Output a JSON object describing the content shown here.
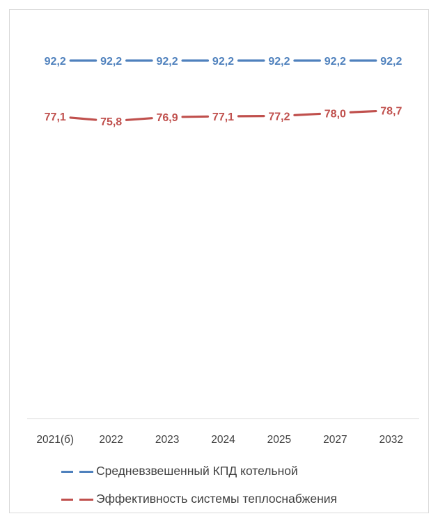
{
  "chart_data": {
    "type": "line",
    "title": "",
    "xlabel": "",
    "ylabel": "",
    "categories": [
      "2021(б)",
      "2022",
      "2023",
      "2024",
      "2025",
      "2027",
      "2032"
    ],
    "series": [
      {
        "name": "Средневзвешенный КПД котельной",
        "color": "#4f81bd",
        "values": [
          92.2,
          92.2,
          92.2,
          92.2,
          92.2,
          92.2,
          92.2
        ],
        "labels": [
          "92,2",
          "92,2",
          "92,2",
          "92,2",
          "92,2",
          "92,2",
          "92,2"
        ]
      },
      {
        "name": "Эффективность системы теплоснабжения",
        "color": "#c0504d",
        "values": [
          77.1,
          75.8,
          76.9,
          77.1,
          77.2,
          78.0,
          78.7
        ],
        "labels": [
          "77,1",
          "75,8",
          "76,9",
          "77,1",
          "77,2",
          "78,0",
          "78,7"
        ]
      }
    ],
    "grid": false,
    "legend_position": "bottom"
  }
}
